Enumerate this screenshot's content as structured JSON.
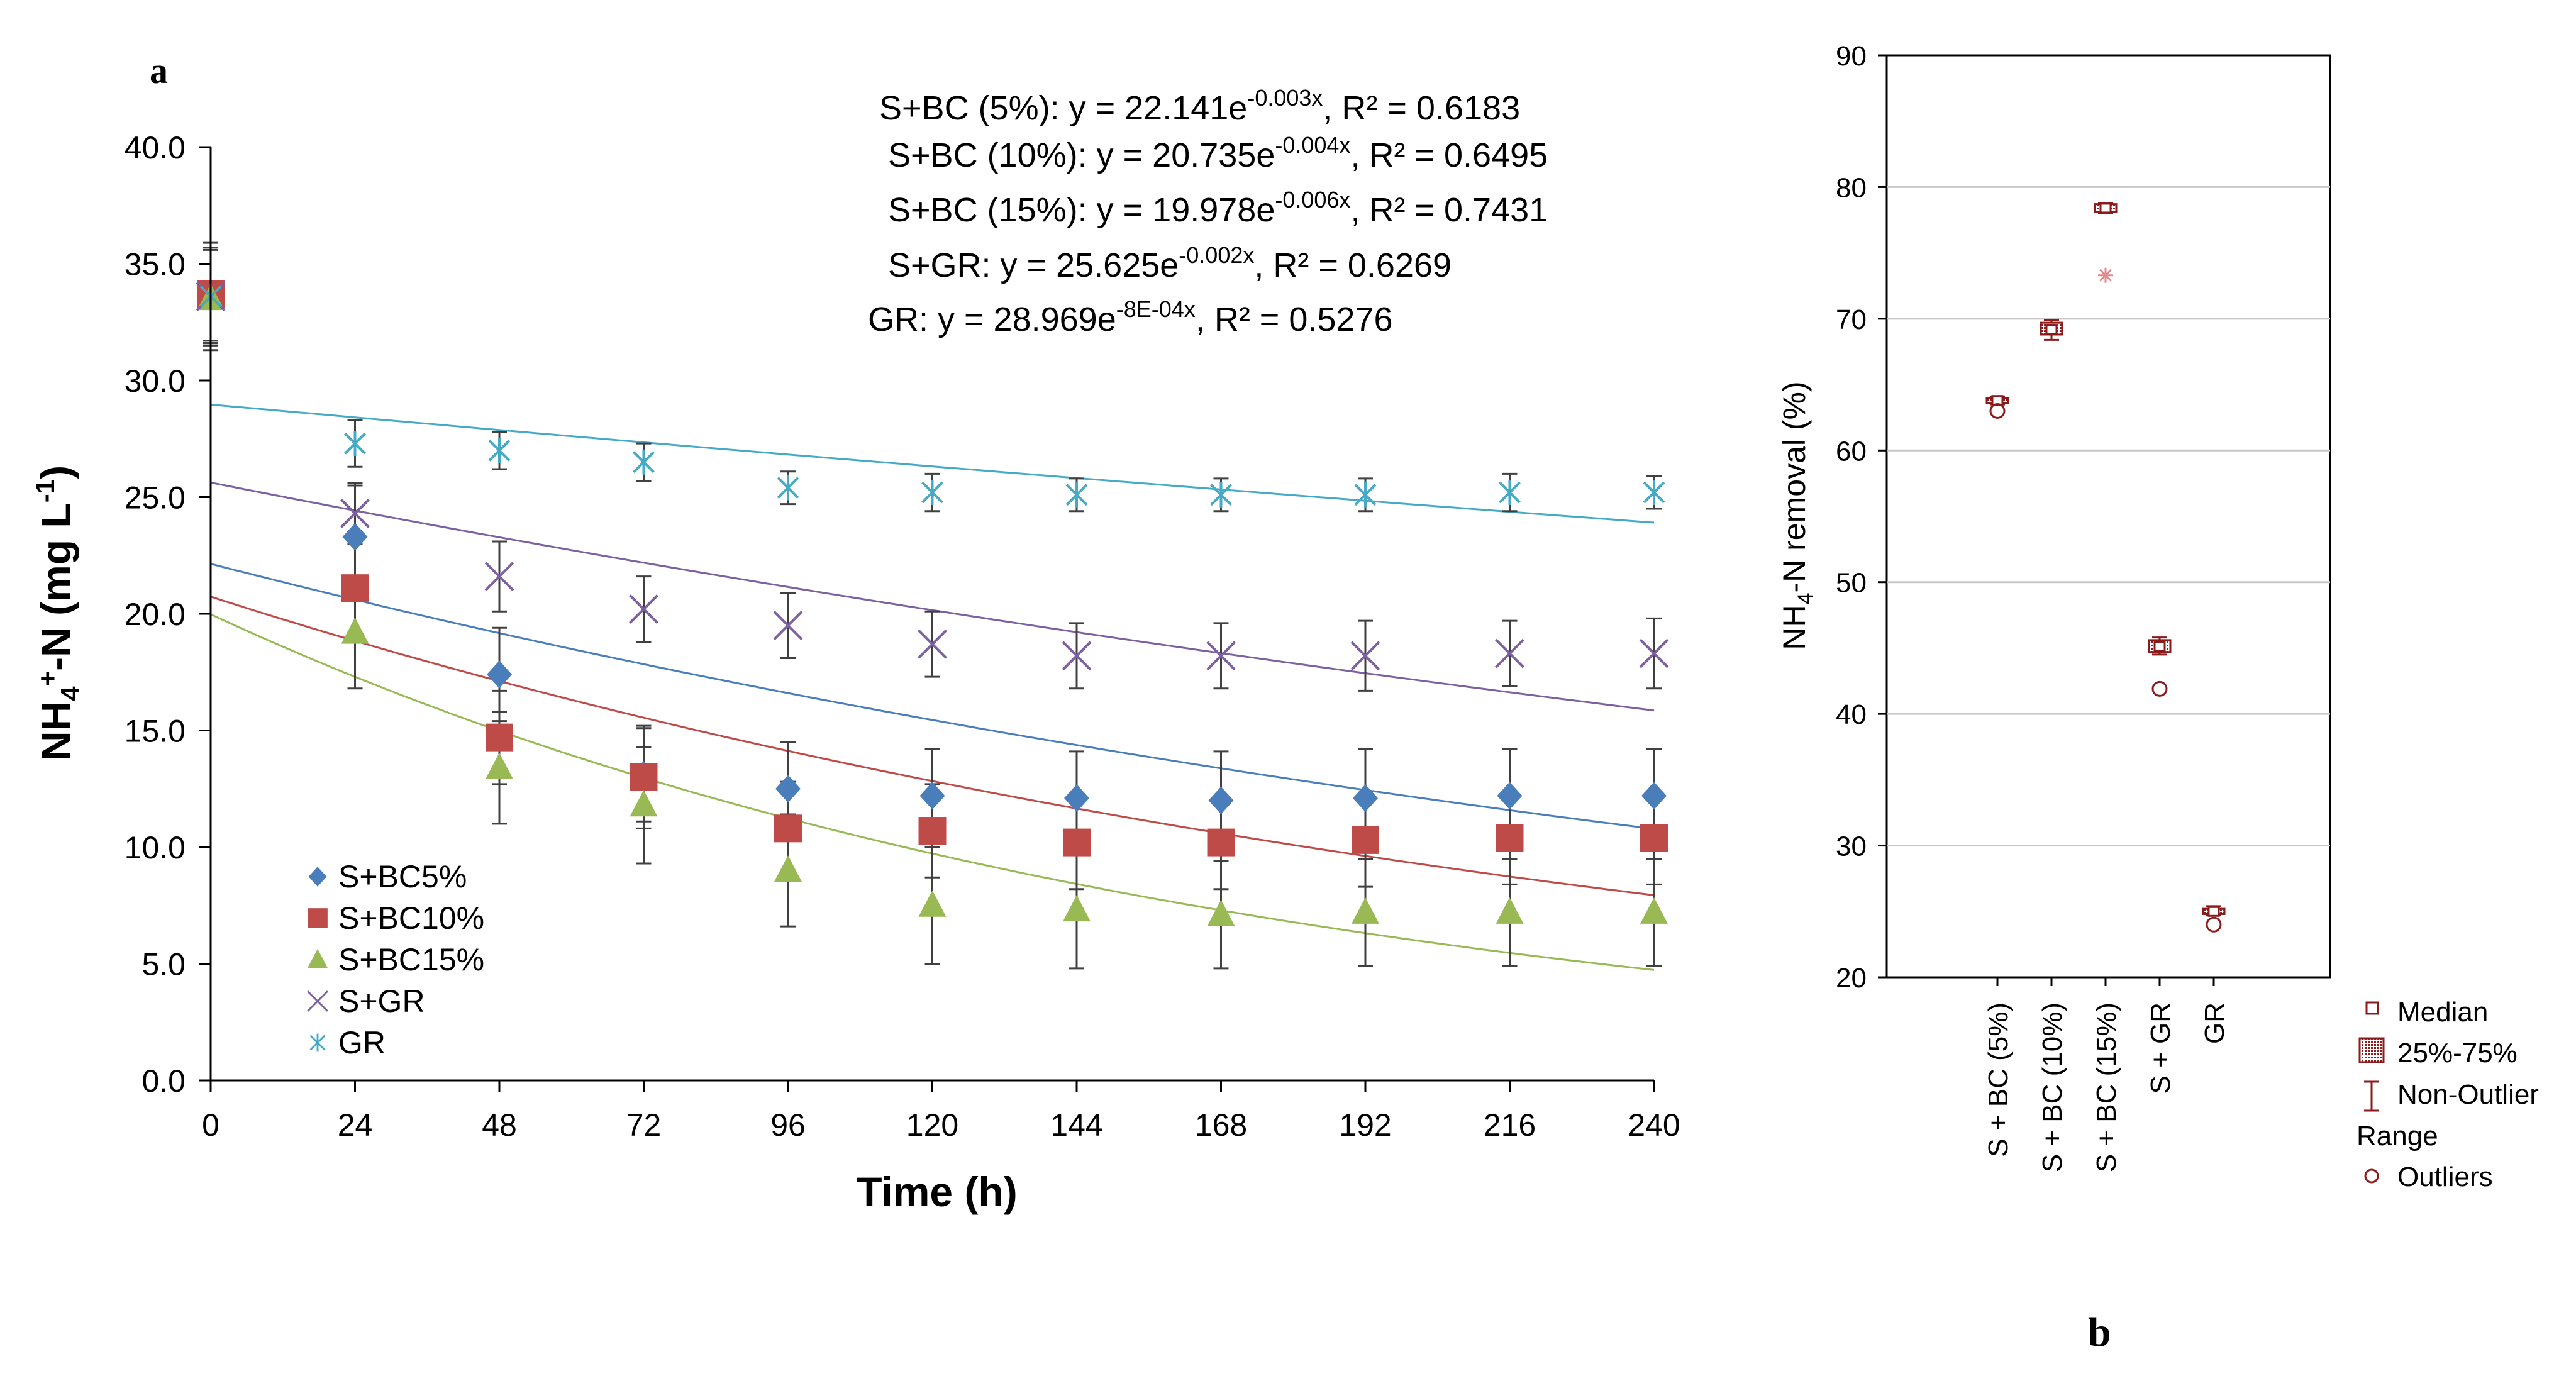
{
  "figure": {
    "label_a": "a",
    "label_b": "b"
  },
  "colors": {
    "s_bc5": "#4a7ebb",
    "s_bc10": "#be4b48",
    "s_bc15": "#98b954",
    "s_gr": "#7d60a0",
    "gr": "#46aac5",
    "box": "#8b1a1a",
    "axis": "#000000",
    "error_bar": "#404040",
    "grid": "#c8c8c8"
  },
  "chart_data": [
    {
      "type": "scatter",
      "panel": "a",
      "title": "",
      "xlabel": "Time (h)",
      "ylabel_parts": [
        "NH",
        "4",
        "+",
        "-N (mg L",
        "-1",
        ")"
      ],
      "xlim": [
        0,
        240
      ],
      "ylim": [
        0,
        40
      ],
      "x_ticks": [
        "0",
        "24",
        "48",
        "72",
        "96",
        "120",
        "144",
        "168",
        "192",
        "216",
        "240"
      ],
      "y_ticks": [
        "0.0",
        "5.0",
        "10.0",
        "15.0",
        "20.0",
        "25.0",
        "30.0",
        "35.0",
        "40.0"
      ],
      "x": [
        0,
        24,
        48,
        72,
        96,
        120,
        144,
        168,
        192,
        216,
        240
      ],
      "legend_placement": "bottom-left",
      "series": [
        {
          "key": "s_bc5",
          "name": "S+BC5%",
          "marker": "diamond",
          "values": [
            33.7,
            23.3,
            17.4,
            13.1,
            12.5,
            12.2,
            12.1,
            12.0,
            12.1,
            12.2,
            12.2
          ],
          "errors": [
            2.0,
            2.2,
            2.0,
            2.0,
            2.0,
            2.0,
            2.0,
            2.1,
            2.1,
            2.0,
            2.0
          ],
          "fit": {
            "a": 22.141,
            "b": -0.003,
            "r2": "0.6183"
          }
        },
        {
          "key": "s_bc10",
          "name": "S+BC10%",
          "marker": "square",
          "values": [
            33.7,
            21.1,
            14.7,
            13.0,
            10.8,
            10.7,
            10.2,
            10.2,
            10.3,
            10.4,
            10.4
          ],
          "errors": [
            2.2,
            2.3,
            2.0,
            2.2,
            2.0,
            2.0,
            2.0,
            2.0,
            2.0,
            2.0,
            2.0
          ],
          "fit": {
            "a": 20.735,
            "b": -0.004,
            "r2": "0.6495"
          }
        },
        {
          "key": "s_bc15",
          "name": "S+BC15%",
          "marker": "triangle",
          "values": [
            33.5,
            19.2,
            13.4,
            11.8,
            9.0,
            7.5,
            7.3,
            7.1,
            7.2,
            7.2,
            7.2
          ],
          "errors": [
            2.2,
            2.4,
            2.4,
            2.5,
            2.4,
            2.5,
            2.5,
            2.3,
            2.3,
            2.3,
            2.3
          ],
          "fit": {
            "a": 19.978,
            "b": -0.006,
            "r2": "0.7431"
          }
        },
        {
          "key": "s_gr",
          "name": "S+GR",
          "marker": "x",
          "values": [
            33.6,
            24.3,
            21.6,
            20.2,
            19.5,
            18.7,
            18.2,
            18.2,
            18.2,
            18.3,
            18.3
          ],
          "errors": [
            2.0,
            1.3,
            1.5,
            1.4,
            1.4,
            1.4,
            1.4,
            1.4,
            1.5,
            1.4,
            1.5
          ],
          "fit": {
            "a": 25.625,
            "b": -0.002,
            "r2": "0.6269"
          }
        },
        {
          "key": "gr",
          "name": "GR",
          "marker": "asterisk",
          "values": [
            33.6,
            27.3,
            27.0,
            26.5,
            25.4,
            25.2,
            25.1,
            25.1,
            25.1,
            25.2,
            25.2
          ],
          "errors": [
            2.0,
            1.0,
            0.8,
            0.8,
            0.7,
            0.8,
            0.7,
            0.7,
            0.7,
            0.8,
            0.7
          ],
          "fit": {
            "a": 28.969,
            "b": -0.0008,
            "r2": "0.5276"
          }
        }
      ],
      "equations": [
        {
          "key": "s_bc5",
          "prefix": "S+BC (5%): y = 22.141e",
          "exponent": "-0.003x",
          "suffix": ", R² = 0.6183"
        },
        {
          "key": "s_bc10",
          "prefix": "S+BC (10%): y = 20.735e",
          "exponent": "-0.004x",
          "suffix": ", R² = 0.6495"
        },
        {
          "key": "s_bc15",
          "prefix": "S+BC (15%): y = 19.978e",
          "exponent": "-0.006x",
          "suffix": ", R² = 0.7431"
        },
        {
          "key": "s_gr",
          "prefix": "S+GR: y = 25.625e",
          "exponent": "-0.002x",
          "suffix": ", R² = 0.6269"
        },
        {
          "key": "gr",
          "prefix": "GR: y = 28.969e",
          "exponent": "-8E-04x",
          "suffix": ", R² = 0.5276"
        }
      ]
    },
    {
      "type": "box",
      "panel": "b",
      "title": "",
      "xlabel": "",
      "ylabel_parts": [
        "NH",
        "4",
        "-N removal (%)"
      ],
      "ylim": [
        20,
        90
      ],
      "y_ticks": [
        "20",
        "30",
        "40",
        "50",
        "60",
        "70",
        "80",
        "90"
      ],
      "grid": true,
      "categories": [
        "S + BC (5%)",
        "S + BC (10%)",
        "S + BC (15%)",
        "S + GR",
        "GR"
      ],
      "boxes": [
        {
          "median": 63.8,
          "q1": 63.6,
          "q3": 64.0,
          "whisker_low": 63.5,
          "whisker_high": 64.1,
          "outliers": [
            63.0
          ]
        },
        {
          "median": 69.2,
          "q1": 68.8,
          "q3": 69.7,
          "whisker_low": 68.4,
          "whisker_high": 69.9,
          "outliers": []
        },
        {
          "median": 78.4,
          "q1": 78.1,
          "q3": 78.7,
          "whisker_low": 78.0,
          "whisker_high": 78.8,
          "outliers": [
            73.3
          ]
        },
        {
          "median": 45.1,
          "q1": 44.7,
          "q3": 45.6,
          "whisker_low": 44.5,
          "whisker_high": 45.8,
          "outliers": [
            41.9
          ]
        },
        {
          "median": 25.0,
          "q1": 24.8,
          "q3": 25.2,
          "whisker_low": 24.7,
          "whisker_high": 25.4,
          "outliers": [
            24.0
          ]
        }
      ],
      "legend": [
        "Median",
        "25%-75%",
        "Non-Outlier",
        "Range",
        "Outliers"
      ]
    }
  ]
}
